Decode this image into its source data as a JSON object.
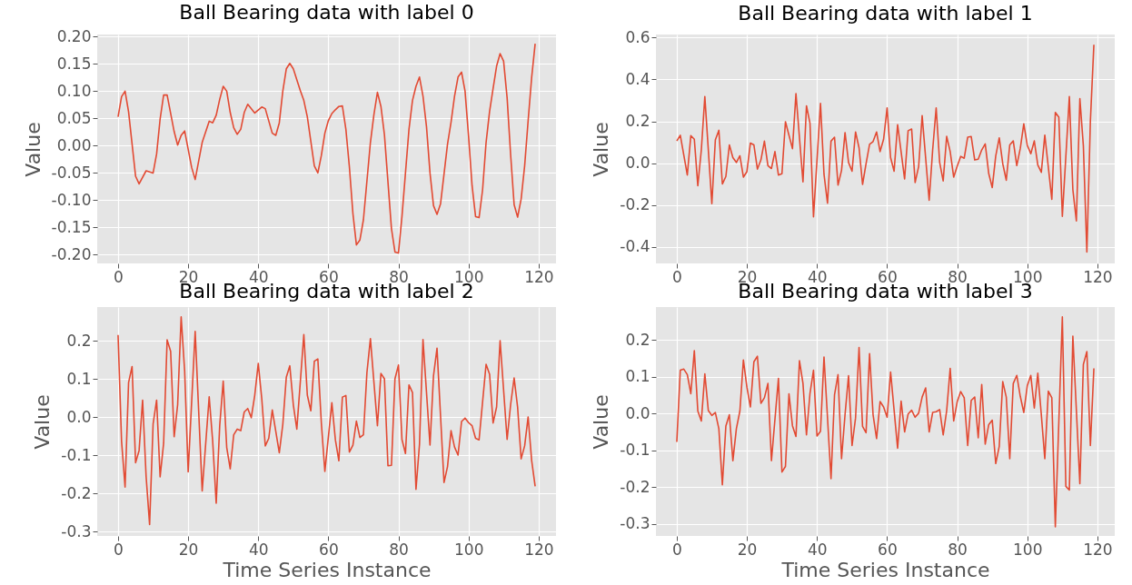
{
  "chart_data": [
    {
      "type": "line",
      "title": "Ball Bearing data with label 0",
      "ylabel": "Value",
      "xlim": [
        -5.95,
        124.95
      ],
      "ylim": [
        -0.216,
        0.204
      ],
      "xticks": [
        0,
        20,
        40,
        60,
        80,
        100,
        120
      ],
      "yticks": [
        {
          "value": -0.2,
          "label": "-0.20"
        },
        {
          "value": -0.15,
          "label": "-0.15"
        },
        {
          "value": -0.1,
          "label": "-0.10"
        },
        {
          "value": -0.05,
          "label": "-0.05"
        },
        {
          "value": 0,
          "label": "0.00"
        },
        0.05,
        {
          "value": 0.1,
          "label": "0.10"
        },
        0.15,
        {
          "value": 0.2,
          "label": "0.20"
        }
      ],
      "grid": true,
      "series": [
        {
          "color": "#e24a33",
          "x": [
            0,
            1,
            2,
            3,
            5,
            6,
            8,
            10,
            11,
            12,
            13,
            14,
            16,
            17,
            18,
            19,
            21,
            22,
            24,
            26,
            27,
            28,
            29,
            30,
            31,
            32,
            33,
            34,
            35,
            36,
            37,
            39,
            41,
            42,
            44,
            45,
            46,
            47,
            48,
            49,
            50,
            52,
            53,
            54,
            56,
            57,
            58,
            59,
            60,
            61,
            62,
            63,
            64,
            65,
            66,
            67,
            68,
            69,
            70,
            72,
            73,
            74,
            75,
            76,
            78,
            79,
            80,
            81,
            82,
            83,
            84,
            85,
            86,
            87,
            88,
            89,
            90,
            91,
            92,
            94,
            95,
            96,
            97,
            98,
            99,
            100,
            101,
            102,
            103,
            104,
            105,
            106,
            107,
            108,
            109,
            110,
            111,
            112,
            113,
            114,
            115,
            116,
            117,
            118,
            119
          ],
          "values": [
            0.053,
            0.09,
            0.1,
            0.062,
            -0.056,
            -0.07,
            -0.046,
            -0.05,
            -0.015,
            0.049,
            0.093,
            0.093,
            0.026,
            0.001,
            0.019,
            0.027,
            -0.04,
            -0.062,
            0.006,
            0.045,
            0.042,
            0.056,
            0.085,
            0.109,
            0.1,
            0.061,
            0.033,
            0.021,
            0.03,
            0.061,
            0.076,
            0.06,
            0.071,
            0.068,
            0.023,
            0.019,
            0.042,
            0.1,
            0.141,
            0.151,
            0.141,
            0.101,
            0.083,
            0.053,
            -0.037,
            -0.05,
            -0.018,
            0.023,
            0.046,
            0.059,
            0.066,
            0.072,
            0.073,
            0.03,
            -0.039,
            -0.124,
            -0.182,
            -0.173,
            -0.136,
            0.006,
            0.057,
            0.098,
            0.072,
            0.02,
            -0.152,
            -0.195,
            -0.197,
            -0.13,
            -0.05,
            0.03,
            0.083,
            0.109,
            0.126,
            0.091,
            0.035,
            -0.05,
            -0.11,
            -0.126,
            -0.107,
            0.003,
            0.043,
            0.091,
            0.126,
            0.135,
            0.1,
            0.018,
            -0.073,
            -0.13,
            -0.132,
            -0.081,
            0.006,
            0.063,
            0.105,
            0.146,
            0.169,
            0.155,
            0.088,
            -0.016,
            -0.108,
            -0.131,
            -0.098,
            -0.037,
            0.046,
            0.125,
            0.187
          ]
        }
      ]
    },
    {
      "type": "line",
      "title": "Ball Bearing data with label 1",
      "ylabel": "Value",
      "xlim": [
        -5.95,
        124.95
      ],
      "ylim": [
        -0.48,
        0.615
      ],
      "xticks": [
        0,
        20,
        40,
        60,
        80,
        100,
        120
      ],
      "yticks": [
        -0.4,
        -0.2,
        {
          "value": 0,
          "label": "0.0"
        },
        0.2,
        0.4,
        0.6
      ],
      "grid": true,
      "series": [
        {
          "color": "#e24a33",
          "x": [
            0,
            1,
            3,
            4,
            5,
            6,
            7,
            8,
            10,
            11,
            12,
            13,
            14,
            15,
            16,
            17,
            18,
            19,
            20,
            21,
            22,
            23,
            24,
            25,
            26,
            27,
            28,
            29,
            30,
            31,
            33,
            34,
            36,
            37,
            38,
            39,
            41,
            42,
            43,
            44,
            45,
            46,
            47,
            48,
            49,
            50,
            51,
            52,
            53,
            54,
            55,
            56,
            57,
            58,
            59,
            60,
            61,
            62,
            63,
            65,
            66,
            67,
            68,
            69,
            70,
            72,
            73,
            74,
            75,
            76,
            77,
            78,
            79,
            80,
            81,
            82,
            83,
            84,
            85,
            86,
            87,
            88,
            89,
            90,
            91,
            92,
            93,
            94,
            95,
            96,
            97,
            98,
            99,
            100,
            101,
            102,
            103,
            104,
            105,
            107,
            108,
            109,
            110,
            112,
            113,
            114,
            115,
            116,
            117,
            118,
            119
          ],
          "values": [
            0.106,
            0.133,
            -0.057,
            0.131,
            0.114,
            -0.108,
            0.063,
            0.318,
            -0.194,
            0.111,
            0.157,
            -0.1,
            -0.064,
            0.087,
            0.026,
            0.003,
            0.035,
            -0.067,
            -0.041,
            0.096,
            0.087,
            -0.029,
            0.015,
            0.105,
            -0.012,
            -0.026,
            0.055,
            -0.057,
            -0.051,
            0.198,
            0.069,
            0.332,
            -0.09,
            0.274,
            0.191,
            -0.257,
            0.286,
            -0.054,
            -0.192,
            0.105,
            0.124,
            -0.105,
            -0.035,
            0.146,
            0.003,
            -0.039,
            0.149,
            0.073,
            -0.102,
            -0.003,
            0.09,
            0.103,
            0.149,
            0.055,
            0.114,
            0.264,
            0.026,
            -0.039,
            0.184,
            -0.076,
            0.155,
            0.163,
            -0.093,
            -0.017,
            0.227,
            -0.178,
            0.063,
            0.264,
            0.003,
            -0.085,
            0.128,
            0.055,
            -0.067,
            -0.015,
            0.032,
            0.023,
            0.124,
            0.127,
            0.015,
            0.019,
            0.063,
            0.092,
            -0.05,
            -0.117,
            0.034,
            0.121,
            -0.003,
            -0.082,
            0.087,
            0.106,
            -0.012,
            0.07,
            0.188,
            0.085,
            0.045,
            0.106,
            -0.009,
            -0.044,
            0.134,
            -0.173,
            0.242,
            0.22,
            -0.255,
            0.318,
            -0.127,
            -0.277,
            0.308,
            0.082,
            -0.426,
            0.201,
            0.566
          ]
        }
      ]
    },
    {
      "type": "line",
      "title": "Ball Bearing data with label 2",
      "xlabel": "Time Series Instance",
      "ylabel": "Value",
      "xlim": [
        -5.95,
        124.95
      ],
      "ylim": [
        -0.311,
        0.289
      ],
      "xticks": [
        0,
        20,
        40,
        60,
        80,
        100,
        120
      ],
      "yticks": [
        -0.3,
        -0.2,
        -0.1,
        {
          "value": 0,
          "label": "0.0"
        },
        0.1,
        0.2
      ],
      "grid": true,
      "series": [
        {
          "color": "#e24a33",
          "x": [
            0,
            1,
            2,
            3,
            4,
            5,
            6,
            7,
            8,
            9,
            10,
            11,
            12,
            13,
            14,
            15,
            16,
            17,
            18,
            19,
            20,
            22,
            24,
            26,
            27,
            28,
            29,
            30,
            31,
            32,
            33,
            34,
            35,
            36,
            37,
            38,
            39,
            40,
            41,
            42,
            43,
            44,
            46,
            47,
            48,
            49,
            50,
            51,
            53,
            54,
            55,
            56,
            57,
            58,
            59,
            61,
            62,
            63,
            64,
            65,
            66,
            67,
            68,
            69,
            70,
            71,
            72,
            74,
            75,
            76,
            77,
            78,
            79,
            80,
            81,
            82,
            83,
            84,
            85,
            86,
            87,
            89,
            90,
            91,
            93,
            94,
            95,
            96,
            97,
            98,
            99,
            100,
            101,
            102,
            103,
            105,
            106,
            107,
            108,
            109,
            111,
            112,
            113,
            114,
            115,
            116,
            117,
            118,
            119
          ],
          "values": [
            0.216,
            -0.063,
            -0.183,
            0.091,
            0.133,
            -0.119,
            -0.087,
            0.045,
            -0.155,
            -0.281,
            -0.017,
            0.045,
            -0.156,
            -0.068,
            0.203,
            0.173,
            -0.051,
            0.033,
            0.263,
            0.121,
            -0.143,
            0.225,
            -0.193,
            0.054,
            -0.063,
            -0.225,
            -0.022,
            0.095,
            -0.079,
            -0.135,
            -0.046,
            -0.031,
            -0.035,
            0.014,
            0.023,
            -0.001,
            0.058,
            0.141,
            0.049,
            -0.075,
            -0.055,
            0.019,
            -0.093,
            -0.019,
            0.105,
            0.135,
            0.033,
            -0.031,
            0.217,
            0.058,
            0.017,
            0.147,
            0.153,
            -0.015,
            -0.142,
            0.038,
            -0.059,
            -0.114,
            0.053,
            0.057,
            -0.091,
            -0.073,
            -0.01,
            -0.053,
            -0.046,
            0.117,
            0.206,
            -0.022,
            0.115,
            0.101,
            -0.127,
            -0.126,
            0.101,
            0.137,
            -0.058,
            -0.095,
            0.085,
            0.065,
            -0.189,
            -0.071,
            0.204,
            -0.073,
            0.109,
            0.181,
            -0.171,
            -0.129,
            -0.035,
            -0.078,
            -0.099,
            -0.011,
            -0.002,
            -0.014,
            -0.022,
            -0.055,
            -0.059,
            0.139,
            0.113,
            -0.015,
            0.027,
            0.201,
            -0.058,
            0.033,
            0.103,
            0.026,
            -0.109,
            -0.075,
            0.001,
            -0.113,
            -0.181
          ]
        }
      ]
    },
    {
      "type": "line",
      "title": "Ball Bearing data with label 3",
      "xlabel": "Time Series Instance",
      "ylabel": "Value",
      "xlim": [
        -5.95,
        124.95
      ],
      "ylim": [
        -0.333,
        0.29
      ],
      "xticks": [
        0,
        20,
        40,
        60,
        80,
        100,
        120
      ],
      "yticks": [
        -0.3,
        -0.2,
        -0.1,
        {
          "value": 0,
          "label": "0.0"
        },
        0.1,
        0.2
      ],
      "grid": true,
      "series": [
        {
          "color": "#e24a33",
          "x": [
            0,
            1,
            2,
            3,
            4,
            5,
            6,
            7,
            8,
            9,
            10,
            11,
            12,
            13,
            14,
            15,
            16,
            17,
            18,
            19,
            20,
            21,
            22,
            23,
            24,
            25,
            26,
            27,
            29,
            30,
            31,
            32,
            33,
            34,
            35,
            36,
            37,
            38,
            39,
            40,
            41,
            42,
            44,
            45,
            46,
            47,
            48,
            49,
            50,
            51,
            52,
            53,
            54,
            55,
            56,
            57,
            58,
            59,
            60,
            61,
            63,
            64,
            65,
            66,
            67,
            68,
            69,
            70,
            71,
            72,
            73,
            74,
            75,
            76,
            77,
            78,
            79,
            80,
            81,
            82,
            83,
            84,
            85,
            86,
            87,
            88,
            89,
            90,
            91,
            92,
            93,
            94,
            95,
            96,
            97,
            98,
            99,
            100,
            101,
            102,
            103,
            104,
            105,
            106,
            107,
            108,
            110,
            111,
            112,
            113,
            115,
            116,
            117,
            118,
            119
          ],
          "values": [
            -0.077,
            0.118,
            0.121,
            0.106,
            0.054,
            0.171,
            0.007,
            -0.02,
            0.108,
            0.008,
            -0.005,
            0.003,
            -0.041,
            -0.194,
            -0.034,
            -0.003,
            -0.128,
            -0.041,
            0.007,
            0.146,
            0.072,
            0.018,
            0.141,
            0.156,
            0.028,
            0.043,
            0.082,
            -0.128,
            0.096,
            -0.159,
            -0.144,
            0.054,
            -0.033,
            -0.062,
            0.144,
            0.082,
            -0.058,
            0.055,
            0.118,
            -0.061,
            -0.048,
            0.154,
            -0.177,
            0.051,
            0.106,
            -0.123,
            -0.003,
            0.103,
            -0.087,
            -0.012,
            0.18,
            -0.035,
            -0.052,
            0.163,
            -0.003,
            -0.068,
            0.033,
            0.018,
            -0.01,
            0.113,
            -0.094,
            0.034,
            -0.05,
            -0.001,
            0.009,
            -0.01,
            0.001,
            0.045,
            0.07,
            -0.05,
            0.003,
            0.005,
            0.011,
            -0.058,
            0.008,
            0.123,
            -0.02,
            0.032,
            0.06,
            0.043,
            -0.087,
            0.036,
            0.045,
            -0.066,
            0.079,
            -0.083,
            -0.03,
            -0.018,
            -0.136,
            -0.089,
            0.087,
            0.045,
            -0.123,
            0.082,
            0.104,
            0.047,
            0.003,
            0.076,
            0.104,
            0.015,
            0.11,
            -0.003,
            -0.123,
            0.061,
            0.043,
            -0.308,
            0.263,
            -0.198,
            -0.208,
            0.211,
            -0.191,
            0.134,
            0.169,
            -0.087,
            0.123
          ]
        }
      ]
    }
  ]
}
